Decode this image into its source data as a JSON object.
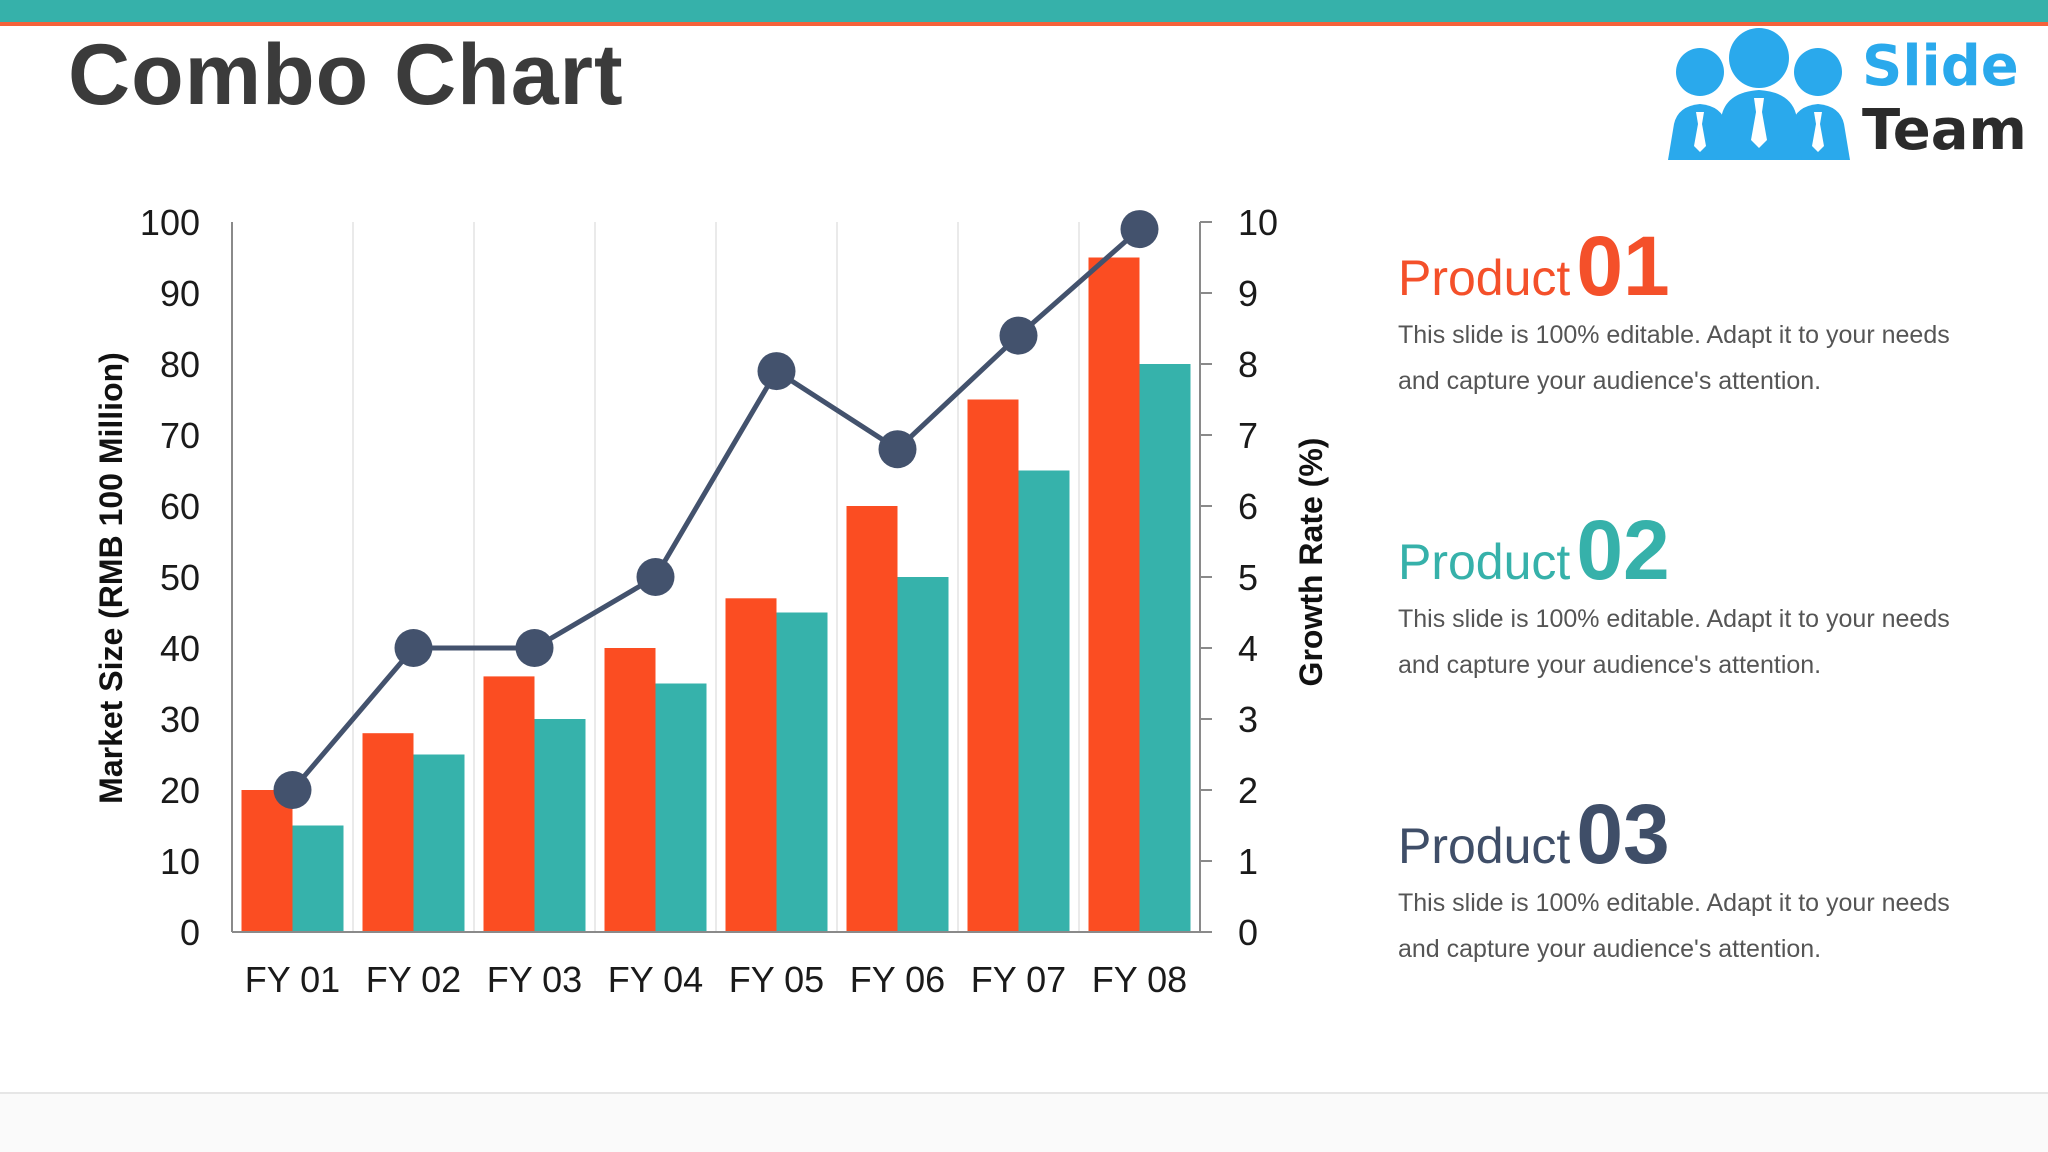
{
  "page": {
    "title": "Combo Chart"
  },
  "logo": {
    "word1": "Slide",
    "word2": "Team",
    "icon": "team-people-icon",
    "color_primary": "#2aa9ec",
    "color_dark": "#2b2b2b"
  },
  "colors": {
    "band": "#36b1aa",
    "accent_line": "#f4623a",
    "series1": "#fb4d22",
    "series2": "#36b2ab",
    "line": "#43526d"
  },
  "chart_data": {
    "type": "bar",
    "categories": [
      "FY 01",
      "FY 02",
      "FY 03",
      "FY 04",
      "FY 05",
      "FY 06",
      "FY 07",
      "FY 08"
    ],
    "series": [
      {
        "values": [
          20,
          28,
          36,
          40,
          47,
          60,
          75,
          95
        ],
        "color": "#fb4d22",
        "axis": "left",
        "kind": "bar"
      },
      {
        "values": [
          15,
          25,
          30,
          35,
          45,
          50,
          65,
          80
        ],
        "color": "#36b2ab",
        "axis": "left",
        "kind": "bar"
      },
      {
        "values": [
          2,
          4,
          4,
          5,
          7.9,
          6.8,
          8.4,
          9.9
        ],
        "color": "#43526d",
        "axis": "right",
        "kind": "line"
      }
    ],
    "ylabel": "Market Size (RMB 100 Million)",
    "y2label": "Growth Rate (%)",
    "ylim": [
      0,
      100
    ],
    "y2lim": [
      0,
      10
    ],
    "yticks": [
      "0",
      "10",
      "20",
      "30",
      "40",
      "50",
      "60",
      "70",
      "80",
      "90",
      "100"
    ],
    "y2ticks": [
      "0",
      "1",
      "2",
      "3",
      "4",
      "5",
      "6",
      "7",
      "8",
      "9",
      "10"
    ],
    "grid": "vertical category separators",
    "legend": "none"
  },
  "products": [
    {
      "word": "Product",
      "num": "01",
      "color": "#f4502a",
      "desc": "This slide is 100% editable. Adapt it to your needs and capture your audience's attention."
    },
    {
      "word": "Product",
      "num": "02",
      "color": "#36b1aa",
      "desc": "This slide is 100% editable. Adapt it to your needs and capture your audience's attention."
    },
    {
      "word": "Product",
      "num": "03",
      "color": "#3f4e68",
      "desc": "This slide is 100% editable. Adapt it to your needs and capture your audience's attention."
    }
  ]
}
